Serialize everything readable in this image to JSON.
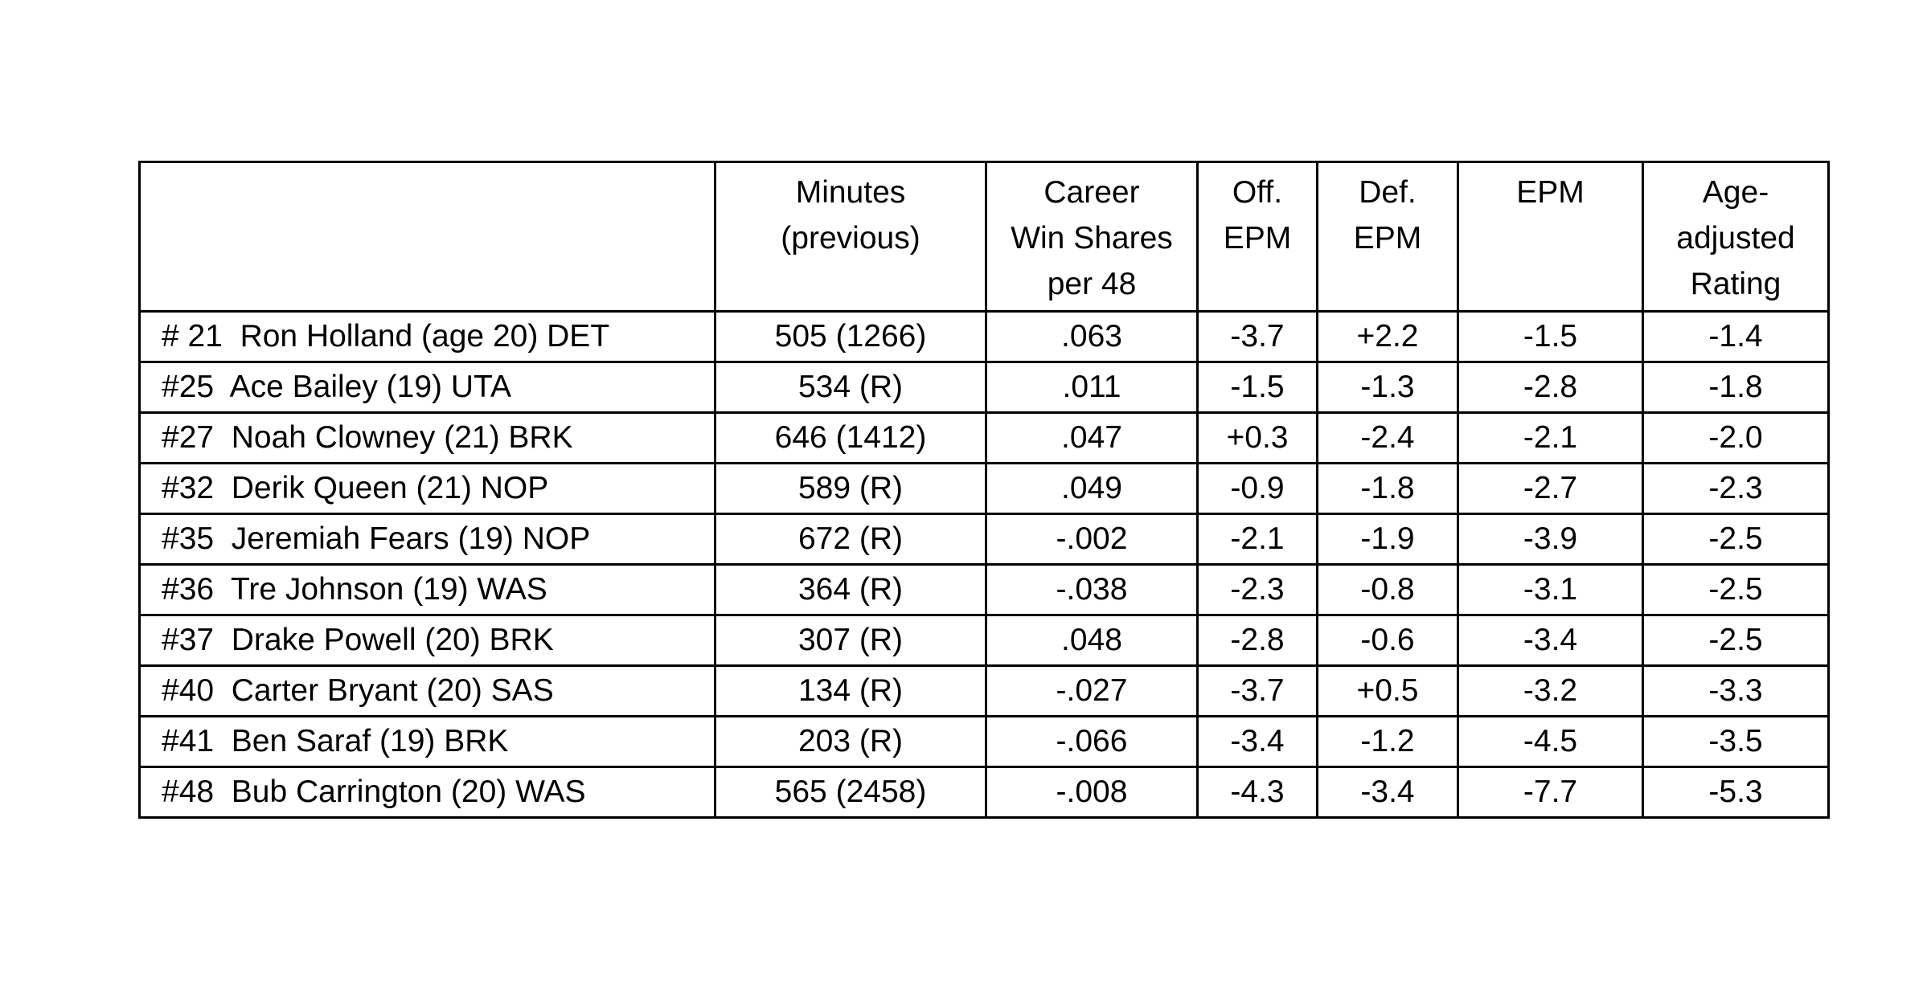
{
  "table": {
    "headers": [
      "",
      "Minutes\n(previous)",
      "Career\nWin Shares\nper 48",
      "Off.\nEPM",
      "Def.\nEPM",
      "EPM",
      "Age-\nadjusted\nRating"
    ],
    "rows": [
      [
        "# 21  Ron Holland (age 20) DET",
        "505 (1266)",
        ".063",
        "-3.7",
        "+2.2",
        "-1.5",
        "-1.4"
      ],
      [
        "#25  Ace Bailey (19) UTA",
        "534 (R)",
        ".011",
        "-1.5",
        "-1.3",
        "-2.8",
        "-1.8"
      ],
      [
        "#27  Noah Clowney (21) BRK",
        "646 (1412)",
        ".047",
        "+0.3",
        "-2.4",
        "-2.1",
        "-2.0"
      ],
      [
        "#32  Derik Queen (21) NOP",
        "589 (R)",
        ".049",
        "-0.9",
        "-1.8",
        "-2.7",
        "-2.3"
      ],
      [
        "#35  Jeremiah Fears (19) NOP",
        "672 (R)",
        "-.002",
        "-2.1",
        "-1.9",
        "-3.9",
        "-2.5"
      ],
      [
        "#36  Tre Johnson (19) WAS",
        "364 (R)",
        "-.038",
        "-2.3",
        "-0.8",
        "-3.1",
        "-2.5"
      ],
      [
        "#37  Drake Powell (20) BRK",
        "307 (R)",
        ".048",
        "-2.8",
        "-0.6",
        "-3.4",
        "-2.5"
      ],
      [
        "#40  Carter Bryant (20) SAS",
        "134 (R)",
        "-.027",
        "-3.7",
        "+0.5",
        "-3.2",
        "-3.3"
      ],
      [
        "#41  Ben Saraf (19) BRK",
        "203 (R)",
        "-.066",
        "-3.4",
        "-1.2",
        "-4.5",
        "-3.5"
      ],
      [
        "#48  Bub Carrington (20) WAS",
        "565 (2458)",
        "-.008",
        "-4.3",
        "-3.4",
        "-7.7",
        "-5.3"
      ]
    ],
    "colors": {
      "border": "#000000",
      "text": "#000000",
      "background": "#ffffff"
    }
  }
}
